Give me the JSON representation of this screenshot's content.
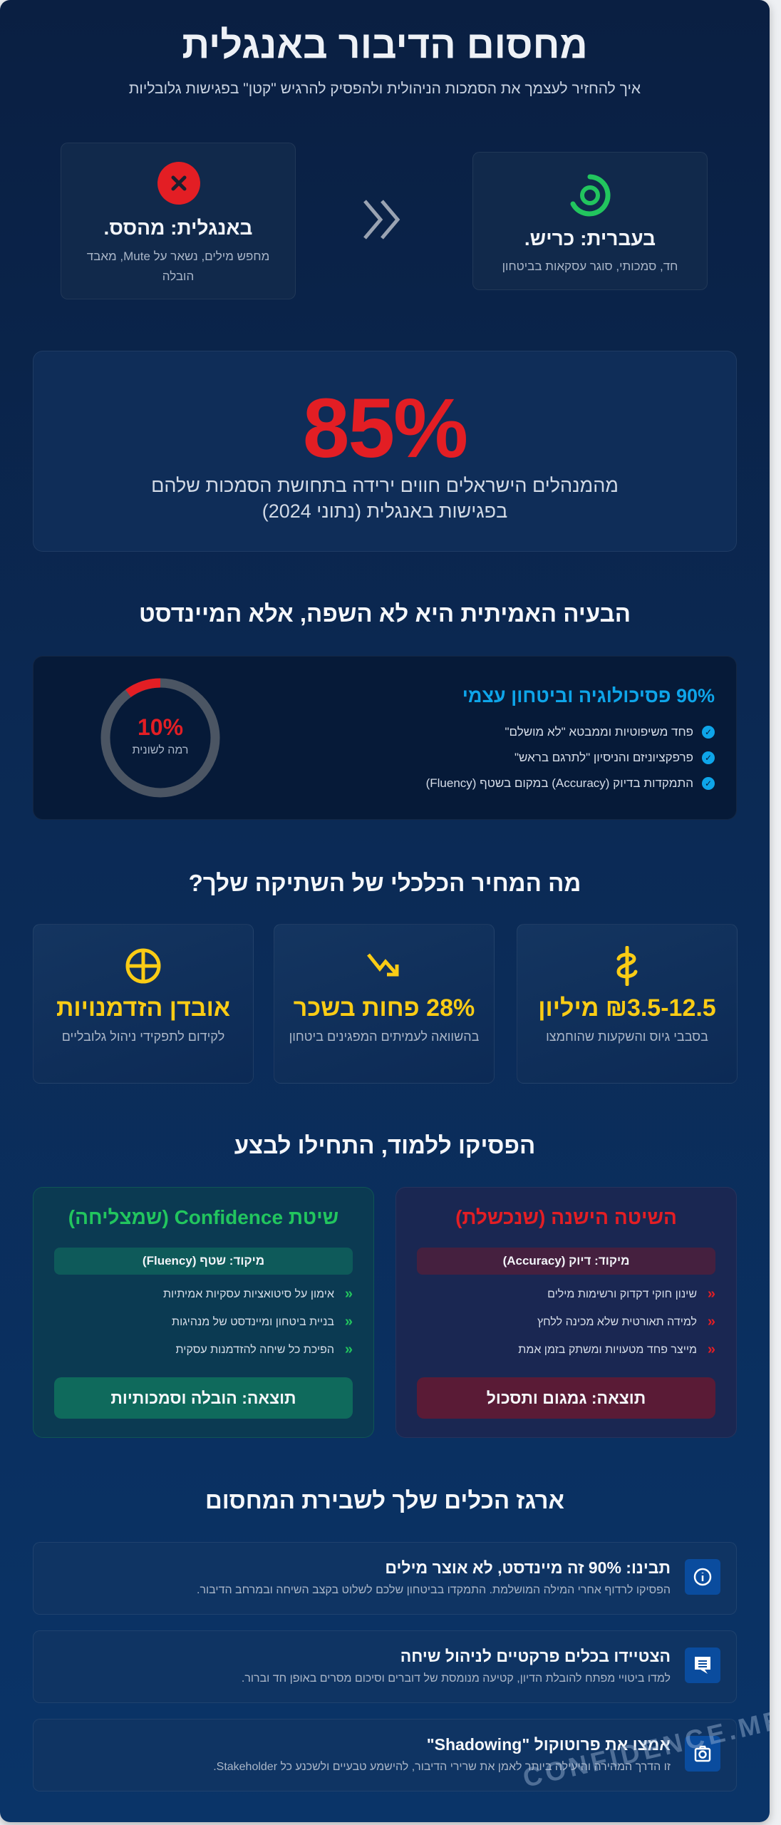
{
  "header": {
    "title": "מחסום הדיבור באנגלית",
    "subtitle": "איך להחזיר לעצמך את הסמכות הניהולית ולהפסיק להרגיש \"קטן\" בפגישות גלובליות"
  },
  "comparison": {
    "english": {
      "icon": "x-circle-icon",
      "title": "באנגלית: מהסס.",
      "desc": "מחפש מילים, נשאר על Mute, מאבד הובלה",
      "color": "#e31e24"
    },
    "arrow_icon": "double-chevron-icon",
    "hebrew": {
      "icon": "target-icon",
      "title": "בעברית: כריש.",
      "desc": "חד, סמכותי, סוגר עסקאות בביטחון",
      "color": "#22c55e"
    }
  },
  "stat": {
    "value": "85%",
    "text": "מהמנהלים הישראלים חווים ירידה בתחושת הסמכות שלהם בפגישות באנגלית (נתוני 2024)"
  },
  "mindset": {
    "heading": "הבעיה האמיתית היא לא השפה, אלא המיינדסט",
    "title": "90% פסיכולוגיה וביטחון עצמי",
    "items": [
      "פחד משיפוטיות וממבטא \"לא מושלם\"",
      "פרפקציוניזם והניסיון \"לתרגם בראש\"",
      "התמקדות בדיוק (Accuracy) במקום בשטף (Fluency)"
    ],
    "donut": {
      "value": "10%",
      "label": "רמה לשונית",
      "fraction": 0.1,
      "color": "#e31e24",
      "track": "#4b5563"
    }
  },
  "cost": {
    "heading": "מה המחיר הכלכלי של השתיקה שלך?",
    "cards": [
      {
        "icon": "shekel-icon",
        "value": "₪3.5-12.5 מיליון",
        "desc": "בסבבי גיוס והשקעות שהוחמצו"
      },
      {
        "icon": "trend-down-icon",
        "value": "28% פחות בשכר",
        "desc": "בהשוואה לעמיתים המפגינים ביטחון"
      },
      {
        "icon": "pie-chart-icon",
        "value": "אובדן הזדמנויות",
        "desc": "לקידום לתפקידי ניהול גלובליים"
      }
    ]
  },
  "methods": {
    "heading": "הפסיקו ללמוד, התחילו לבצע",
    "old": {
      "title": "השיטה הישנה (שנכשלת)",
      "focus": "מיקוד: דיוק (Accuracy)",
      "items": [
        "שינון חוקי דקדוק ורשימות מילים",
        "למידה תאורטית שלא מכינה ללחץ",
        "מייצר פחד מטעויות ומשתק בזמן אמת"
      ],
      "result": "תוצאה: גמגום ותסכול",
      "color": "#e31e24"
    },
    "new": {
      "title": "שיטת Confidence (שמצליחה)",
      "focus": "מיקוד: שטף (Fluency)",
      "items": [
        "אימון על סיטואציות עסקיות אמיתיות",
        "בניית ביטחון ומיינדסט של מנהיגות",
        "הפיכת כל שיחה להזדמנות עסקית"
      ],
      "result": "תוצאה: הובלה וסמכותיות",
      "color": "#22c55e"
    }
  },
  "tools": {
    "heading": "ארגז הכלים שלך לשבירת המחסום",
    "items": [
      {
        "icon": "info-icon",
        "title": "תבינו: 90% זה מיינדסט, לא אוצר מילים",
        "desc": "הפסיקו לרדוף אחרי המילה המושלמת. התמקדו בביטחון שלכם לשלוט בקצב השיחה ובמרחב הדיבור."
      },
      {
        "icon": "chat-icon",
        "title": "הצטיידו בכלים פרקטיים לניהול שיחה",
        "desc": "למדו ביטויי מפתח להובלת הדיון, קטיעה מנומסת של דוברים וסיכום מסרים באופן חד וברור."
      },
      {
        "icon": "camera-icon",
        "title": "אמצו את פרוטוקול \"Shadowing\"",
        "desc": "זו הדרך המהירה והיעילה ביותר לאמן את שרירי הדיבור, להישמע טבעיים ולשכנע כל Stakeholder."
      }
    ]
  },
  "watermark": "CONFIDENCE.ME"
}
